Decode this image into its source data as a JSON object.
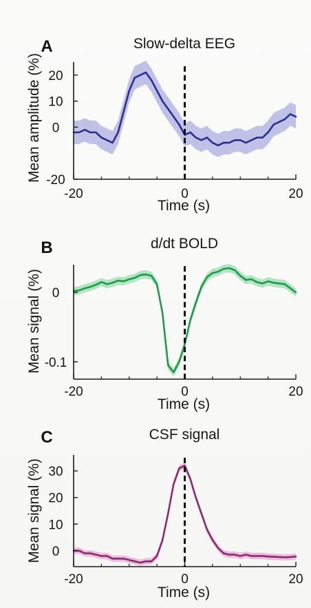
{
  "chart_data": [
    {
      "type": "line",
      "panel_letter": "A",
      "title": "Slow-delta EEG",
      "xlabel": "Time (s)",
      "ylabel": "Mean amplitude (%)",
      "xlim": [
        -20,
        20
      ],
      "ylim": [
        -20,
        25
      ],
      "xticks": [
        -20,
        0,
        20
      ],
      "yticks": [
        -20,
        0,
        10,
        20
      ],
      "band": 4.5,
      "grid": false,
      "legend": "none",
      "event_line_x": 0,
      "color": "#2b2f8c",
      "band_color": "#8e92d8",
      "series": [
        {
          "x": [
            -20,
            -19,
            -18,
            -17,
            -16,
            -15,
            -14,
            -13,
            -12,
            -11,
            -10,
            -9,
            -8,
            -7,
            -6,
            -5,
            -4,
            -3,
            -2,
            -1,
            0,
            1,
            2,
            3,
            4,
            5,
            6,
            7,
            8,
            9,
            10,
            11,
            12,
            13,
            14,
            15,
            16,
            17,
            18,
            19,
            20
          ],
          "values": [
            -2,
            -2,
            -1,
            -2,
            -2,
            -4,
            -5,
            -6,
            -2,
            6,
            14,
            19,
            20,
            21,
            18,
            14,
            10,
            7,
            4,
            1,
            -3,
            -2,
            -4,
            -5,
            -4,
            -6,
            -7,
            -6,
            -6,
            -5,
            -5,
            -6,
            -5,
            -4,
            -4,
            -2,
            1,
            2,
            3,
            5,
            4
          ]
        }
      ]
    },
    {
      "type": "line",
      "panel_letter": "B",
      "title": "d/dt BOLD",
      "xlabel": "Time (s)",
      "ylabel": "Mean signal (%)",
      "xlim": [
        -20,
        20
      ],
      "ylim": [
        -0.125,
        0.04
      ],
      "xticks": [
        -20,
        0,
        20
      ],
      "yticks": [
        -0.1,
        0
      ],
      "band": 0.006,
      "grid": false,
      "legend": "none",
      "event_line_x": 0,
      "color": "#1e9a4b",
      "band_color": "#79d49b",
      "series": [
        {
          "x": [
            -20,
            -19,
            -18,
            -17,
            -16,
            -15,
            -14,
            -13,
            -12,
            -11,
            -10,
            -9,
            -8,
            -7,
            -6,
            -5,
            -4,
            -3,
            -2,
            -1,
            0,
            1,
            2,
            3,
            4,
            5,
            6,
            7,
            8,
            9,
            10,
            11,
            12,
            13,
            14,
            15,
            16,
            17,
            18,
            19,
            20
          ],
          "values": [
            0.002,
            0.003,
            0.006,
            0.008,
            0.011,
            0.015,
            0.012,
            0.014,
            0.017,
            0.016,
            0.019,
            0.021,
            0.025,
            0.026,
            0.024,
            0.012,
            -0.03,
            -0.105,
            -0.115,
            -0.1,
            -0.075,
            -0.04,
            -0.015,
            0.008,
            0.022,
            0.028,
            0.03,
            0.034,
            0.035,
            0.032,
            0.024,
            0.018,
            0.019,
            0.015,
            0.013,
            0.016,
            0.014,
            0.013,
            0.012,
            0.006,
            0.0
          ]
        }
      ]
    },
    {
      "type": "line",
      "panel_letter": "C",
      "title": "CSF signal",
      "xlabel": "Time (s)",
      "ylabel": "Mean signal (%)",
      "xlim": [
        -20,
        20
      ],
      "ylim": [
        -6,
        36
      ],
      "xticks": [
        -20,
        0,
        20
      ],
      "yticks": [
        0,
        10,
        20,
        30
      ],
      "band": 1.2,
      "grid": false,
      "legend": "none",
      "event_line_x": 0,
      "color": "#8b2a6f",
      "band_color": "#dc8fc6",
      "series": [
        {
          "x": [
            -20,
            -19,
            -18,
            -17,
            -16,
            -15,
            -14,
            -13,
            -12,
            -11,
            -10,
            -9,
            -8,
            -7,
            -6,
            -5,
            -4,
            -3,
            -2,
            -1,
            0,
            1,
            2,
            3,
            4,
            5,
            6,
            7,
            8,
            9,
            10,
            11,
            12,
            13,
            14,
            15,
            16,
            17,
            18,
            19,
            20
          ],
          "values": [
            0,
            0,
            -1,
            -1,
            -1.5,
            -2,
            -2,
            -3,
            -3,
            -3,
            -3.5,
            -4,
            -4.5,
            -4,
            -4,
            -2,
            4,
            14,
            25,
            31,
            32,
            27,
            20,
            14,
            8,
            4,
            1,
            -1,
            -1.5,
            -1.5,
            -2,
            -1.5,
            -2,
            -2,
            -2,
            -2.2,
            -2.3,
            -2.4,
            -2.5,
            -2.4,
            -2.2
          ]
        }
      ]
    }
  ]
}
